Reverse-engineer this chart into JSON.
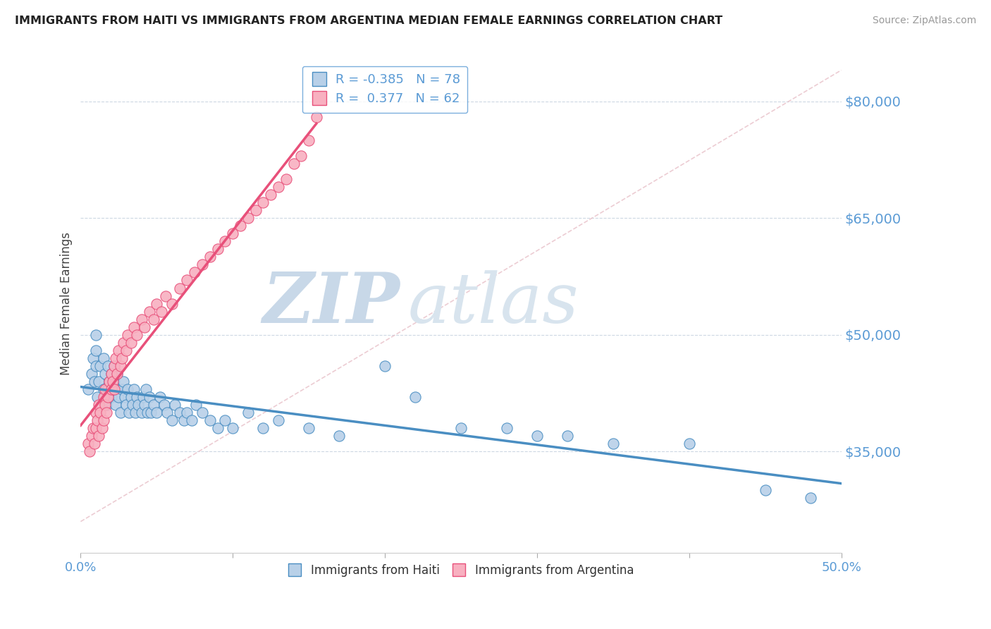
{
  "title": "IMMIGRANTS FROM HAITI VS IMMIGRANTS FROM ARGENTINA MEDIAN FEMALE EARNINGS CORRELATION CHART",
  "source": "Source: ZipAtlas.com",
  "ylabel": "Median Female Earnings",
  "y_ticks": [
    35000,
    50000,
    65000,
    80000
  ],
  "y_tick_labels": [
    "$35,000",
    "$50,000",
    "$65,000",
    "$80,000"
  ],
  "x_range": [
    0.0,
    0.5
  ],
  "y_range": [
    22000,
    86000
  ],
  "haiti_R": -0.385,
  "haiti_N": 78,
  "argentina_R": 0.377,
  "argentina_N": 62,
  "haiti_color": "#b8d0e8",
  "argentina_color": "#f8b0c0",
  "haiti_line_color": "#4a8ec2",
  "argentina_line_color": "#e8507a",
  "ref_line_color": "#d8c8c8",
  "watermark_zip": "ZIP",
  "watermark_atlas": "atlas",
  "watermark_color": "#dce8f0",
  "background_color": "#ffffff",
  "tick_color": "#5b9bd5",
  "haiti_scatter_x": [
    0.005,
    0.007,
    0.008,
    0.009,
    0.01,
    0.01,
    0.01,
    0.011,
    0.012,
    0.013,
    0.015,
    0.015,
    0.016,
    0.017,
    0.018,
    0.018,
    0.019,
    0.02,
    0.02,
    0.021,
    0.022,
    0.022,
    0.023,
    0.023,
    0.024,
    0.025,
    0.026,
    0.027,
    0.028,
    0.029,
    0.03,
    0.031,
    0.032,
    0.033,
    0.034,
    0.035,
    0.036,
    0.037,
    0.038,
    0.04,
    0.041,
    0.042,
    0.043,
    0.044,
    0.045,
    0.046,
    0.048,
    0.05,
    0.052,
    0.055,
    0.057,
    0.06,
    0.062,
    0.065,
    0.068,
    0.07,
    0.073,
    0.076,
    0.08,
    0.085,
    0.09,
    0.095,
    0.1,
    0.11,
    0.12,
    0.13,
    0.15,
    0.17,
    0.2,
    0.22,
    0.25,
    0.28,
    0.3,
    0.32,
    0.35,
    0.4,
    0.45,
    0.48
  ],
  "haiti_scatter_y": [
    43000,
    45000,
    47000,
    44000,
    48000,
    46000,
    50000,
    42000,
    44000,
    46000,
    43000,
    47000,
    45000,
    41000,
    43000,
    46000,
    44000,
    42000,
    45000,
    43000,
    44000,
    46000,
    43000,
    41000,
    45000,
    42000,
    40000,
    43000,
    44000,
    42000,
    41000,
    43000,
    40000,
    42000,
    41000,
    43000,
    40000,
    42000,
    41000,
    40000,
    42000,
    41000,
    43000,
    40000,
    42000,
    40000,
    41000,
    40000,
    42000,
    41000,
    40000,
    39000,
    41000,
    40000,
    39000,
    40000,
    39000,
    41000,
    40000,
    39000,
    38000,
    39000,
    38000,
    40000,
    38000,
    39000,
    38000,
    37000,
    46000,
    42000,
    38000,
    38000,
    37000,
    37000,
    36000,
    36000,
    30000,
    29000
  ],
  "argentina_scatter_x": [
    0.005,
    0.006,
    0.007,
    0.008,
    0.009,
    0.01,
    0.01,
    0.011,
    0.012,
    0.012,
    0.013,
    0.014,
    0.015,
    0.015,
    0.016,
    0.016,
    0.017,
    0.018,
    0.019,
    0.02,
    0.02,
    0.021,
    0.022,
    0.022,
    0.023,
    0.024,
    0.025,
    0.026,
    0.027,
    0.028,
    0.03,
    0.031,
    0.033,
    0.035,
    0.037,
    0.04,
    0.042,
    0.045,
    0.048,
    0.05,
    0.053,
    0.056,
    0.06,
    0.065,
    0.07,
    0.075,
    0.08,
    0.085,
    0.09,
    0.095,
    0.1,
    0.105,
    0.11,
    0.115,
    0.12,
    0.125,
    0.13,
    0.135,
    0.14,
    0.145,
    0.15,
    0.155
  ],
  "argentina_scatter_y": [
    36000,
    35000,
    37000,
    38000,
    36000,
    38000,
    40000,
    39000,
    41000,
    37000,
    40000,
    38000,
    42000,
    39000,
    41000,
    43000,
    40000,
    42000,
    44000,
    43000,
    45000,
    44000,
    46000,
    43000,
    47000,
    45000,
    48000,
    46000,
    47000,
    49000,
    48000,
    50000,
    49000,
    51000,
    50000,
    52000,
    51000,
    53000,
    52000,
    54000,
    53000,
    55000,
    54000,
    56000,
    57000,
    58000,
    59000,
    60000,
    61000,
    62000,
    63000,
    64000,
    65000,
    66000,
    67000,
    68000,
    69000,
    70000,
    72000,
    73000,
    75000,
    78000
  ]
}
